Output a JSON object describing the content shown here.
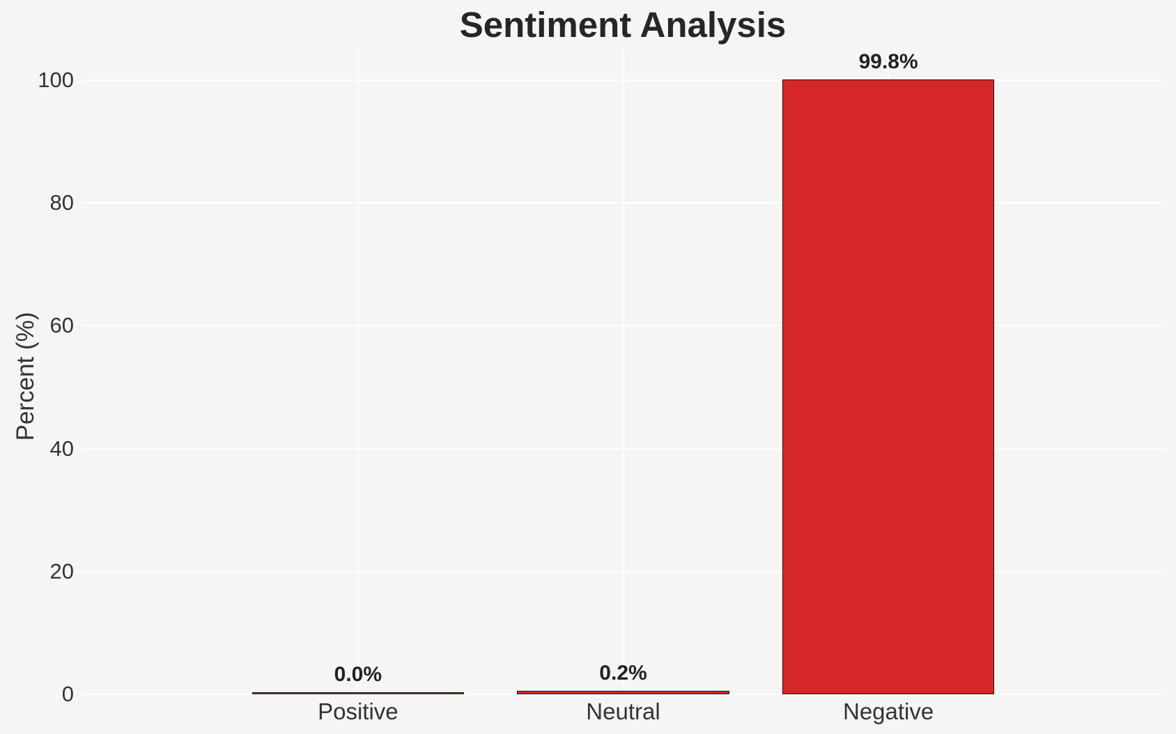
{
  "colors": {
    "background": "#f5f5f6",
    "grid": "#ffffff",
    "bar_fill": "#d62728",
    "bar_edge": "#161616",
    "title_text": "#262626",
    "axis_text": "#333333",
    "value_label_text": "#222222"
  },
  "chart_data": {
    "type": "bar",
    "title": "Sentiment Analysis",
    "ylabel": "Percent (%)",
    "xlabel": "",
    "categories": [
      "Positive",
      "Neutral",
      "Negative"
    ],
    "values": [
      0.0,
      0.2,
      99.8
    ],
    "value_labels": [
      "0.0%",
      "0.2%",
      "99.8%"
    ],
    "yticks": [
      0,
      20,
      40,
      60,
      80,
      100
    ],
    "ylim": [
      0,
      105
    ],
    "grid": "on",
    "legend_position": "none"
  }
}
